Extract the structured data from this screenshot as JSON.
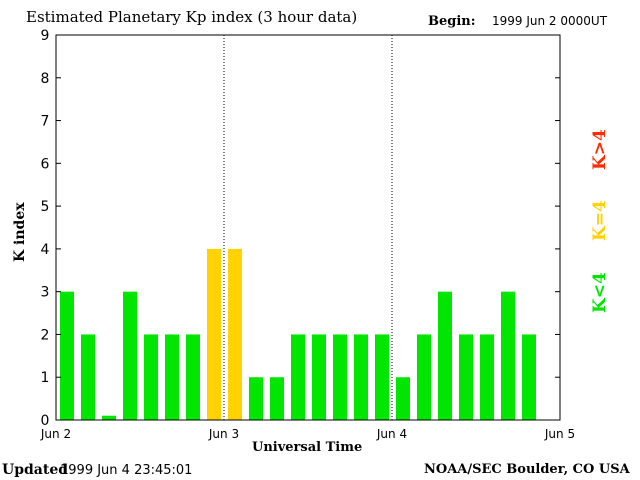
{
  "header": {
    "title": "Estimated Planetary Kp index (3 hour data)",
    "begin_label": "Begin:",
    "begin_value": "1999 Jun 2 0000UT"
  },
  "footer": {
    "updated_label": "Updated",
    "updated_value": "1999 Jun  4 23:45:01",
    "credit": "NOAA/SEC Boulder, CO USA"
  },
  "legend": {
    "high": {
      "label": "K>4",
      "color": "#ff2a00"
    },
    "equal": {
      "label": "K=4",
      "color": "#ffd200"
    },
    "low": {
      "label": "K<4",
      "color": "#00e600"
    }
  },
  "chart_data": {
    "type": "bar",
    "title": "Estimated Planetary Kp index (3 hour data)",
    "xlabel": "Universal Time",
    "ylabel": "K index",
    "ylim": [
      0,
      9
    ],
    "yticks": [
      "0",
      "1",
      "2",
      "3",
      "4",
      "5",
      "6",
      "7",
      "8",
      "9"
    ],
    "xticks": [
      "Jun 2",
      "Jun 3",
      "Jun 4",
      "Jun 5"
    ],
    "x_start": "1999 Jun 2 00:00 UT",
    "interval_hours": 3,
    "day_separators": [
      "Jun 3",
      "Jun 4"
    ],
    "values": [
      3,
      2,
      0.1,
      3,
      2,
      2,
      2,
      4,
      4,
      1,
      1,
      2,
      2,
      2,
      2,
      2,
      1,
      2,
      3,
      2,
      2,
      3,
      2
    ],
    "colors": {
      "below_4": "#00e600",
      "equal_4": "#ffd200",
      "above_4": "#ff2a00"
    },
    "grid": false
  }
}
